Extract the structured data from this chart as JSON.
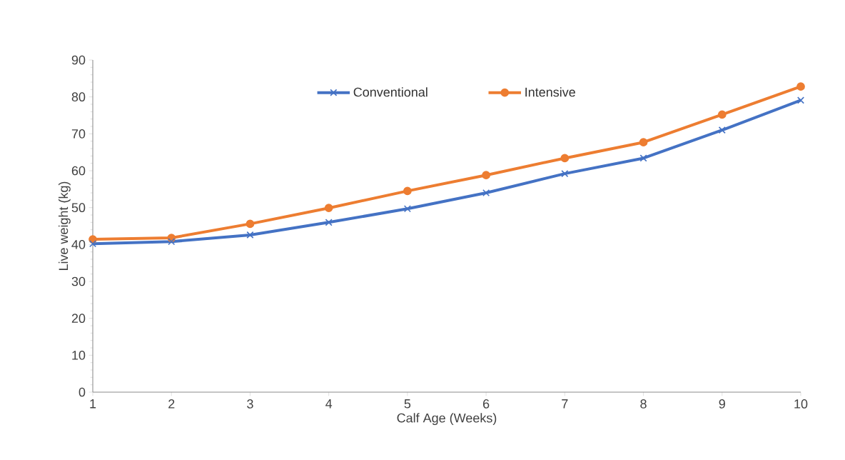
{
  "chart_data": {
    "type": "line",
    "xlabel": "Calf Age (Weeks)",
    "ylabel": "Live weight (kg)",
    "categories": [
      "1",
      "2",
      "3",
      "4",
      "5",
      "6",
      "7",
      "8",
      "9",
      "10"
    ],
    "series": [
      {
        "name": "Conventional",
        "color": "#4472c4",
        "marker": "cross",
        "values": [
          40.2,
          40.8,
          42.6,
          46.0,
          49.7,
          54.0,
          59.2,
          63.4,
          71.0,
          79.1
        ]
      },
      {
        "name": "Intensive",
        "color": "#ed7d31",
        "marker": "circle",
        "values": [
          41.4,
          41.8,
          45.6,
          49.9,
          54.5,
          58.8,
          63.4,
          67.7,
          75.2,
          82.8
        ]
      }
    ],
    "ylim": [
      0,
      90
    ],
    "yticks": [
      0,
      10,
      20,
      30,
      40,
      50,
      60,
      70,
      80,
      90
    ],
    "grid": false,
    "legend": "top",
    "line_style": "solid"
  }
}
